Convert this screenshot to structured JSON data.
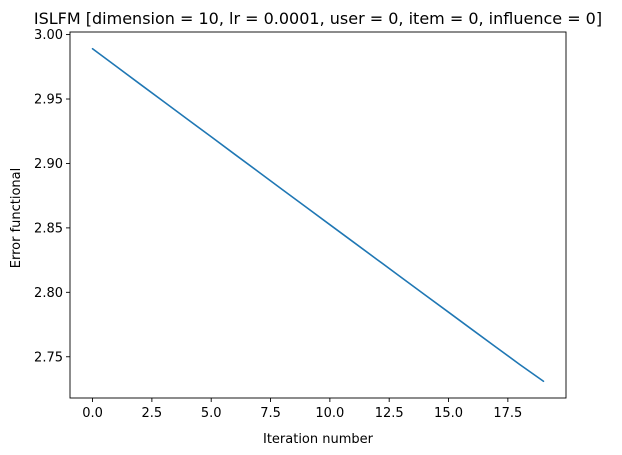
{
  "chart_data": {
    "type": "line",
    "title": "ISLFM [dimension = 10, lr = 0.0001, user = 0, item = 0, influence = 0]",
    "xlabel": "Iteration number",
    "ylabel": "Error functional",
    "xlim": [
      -0.95,
      19.95
    ],
    "ylim": [
      2.718,
      3.002
    ],
    "xticks": [
      0.0,
      2.5,
      5.0,
      7.5,
      10.0,
      12.5,
      15.0,
      17.5
    ],
    "xtick_labels": [
      "0.0",
      "2.5",
      "5.0",
      "7.5",
      "10.0",
      "12.5",
      "15.0",
      "17.5"
    ],
    "yticks": [
      2.75,
      2.8,
      2.85,
      2.9,
      2.95,
      3.0
    ],
    "ytick_labels": [
      "2.75",
      "2.80",
      "2.85",
      "2.90",
      "2.95",
      "3.00"
    ],
    "grid": false,
    "series": [
      {
        "color": "#1f77b4",
        "x": [
          0,
          1,
          2,
          3,
          4,
          5,
          6,
          7,
          8,
          9,
          10,
          11,
          12,
          13,
          14,
          15,
          16,
          17,
          18,
          19
        ],
        "y": [
          2.989,
          2.9753,
          2.9616,
          2.948,
          2.9343,
          2.9207,
          2.907,
          2.8934,
          2.8797,
          2.8661,
          2.8525,
          2.8389,
          2.8253,
          2.8117,
          2.7981,
          2.7846,
          2.771,
          2.7575,
          2.744,
          2.731
        ]
      }
    ]
  }
}
